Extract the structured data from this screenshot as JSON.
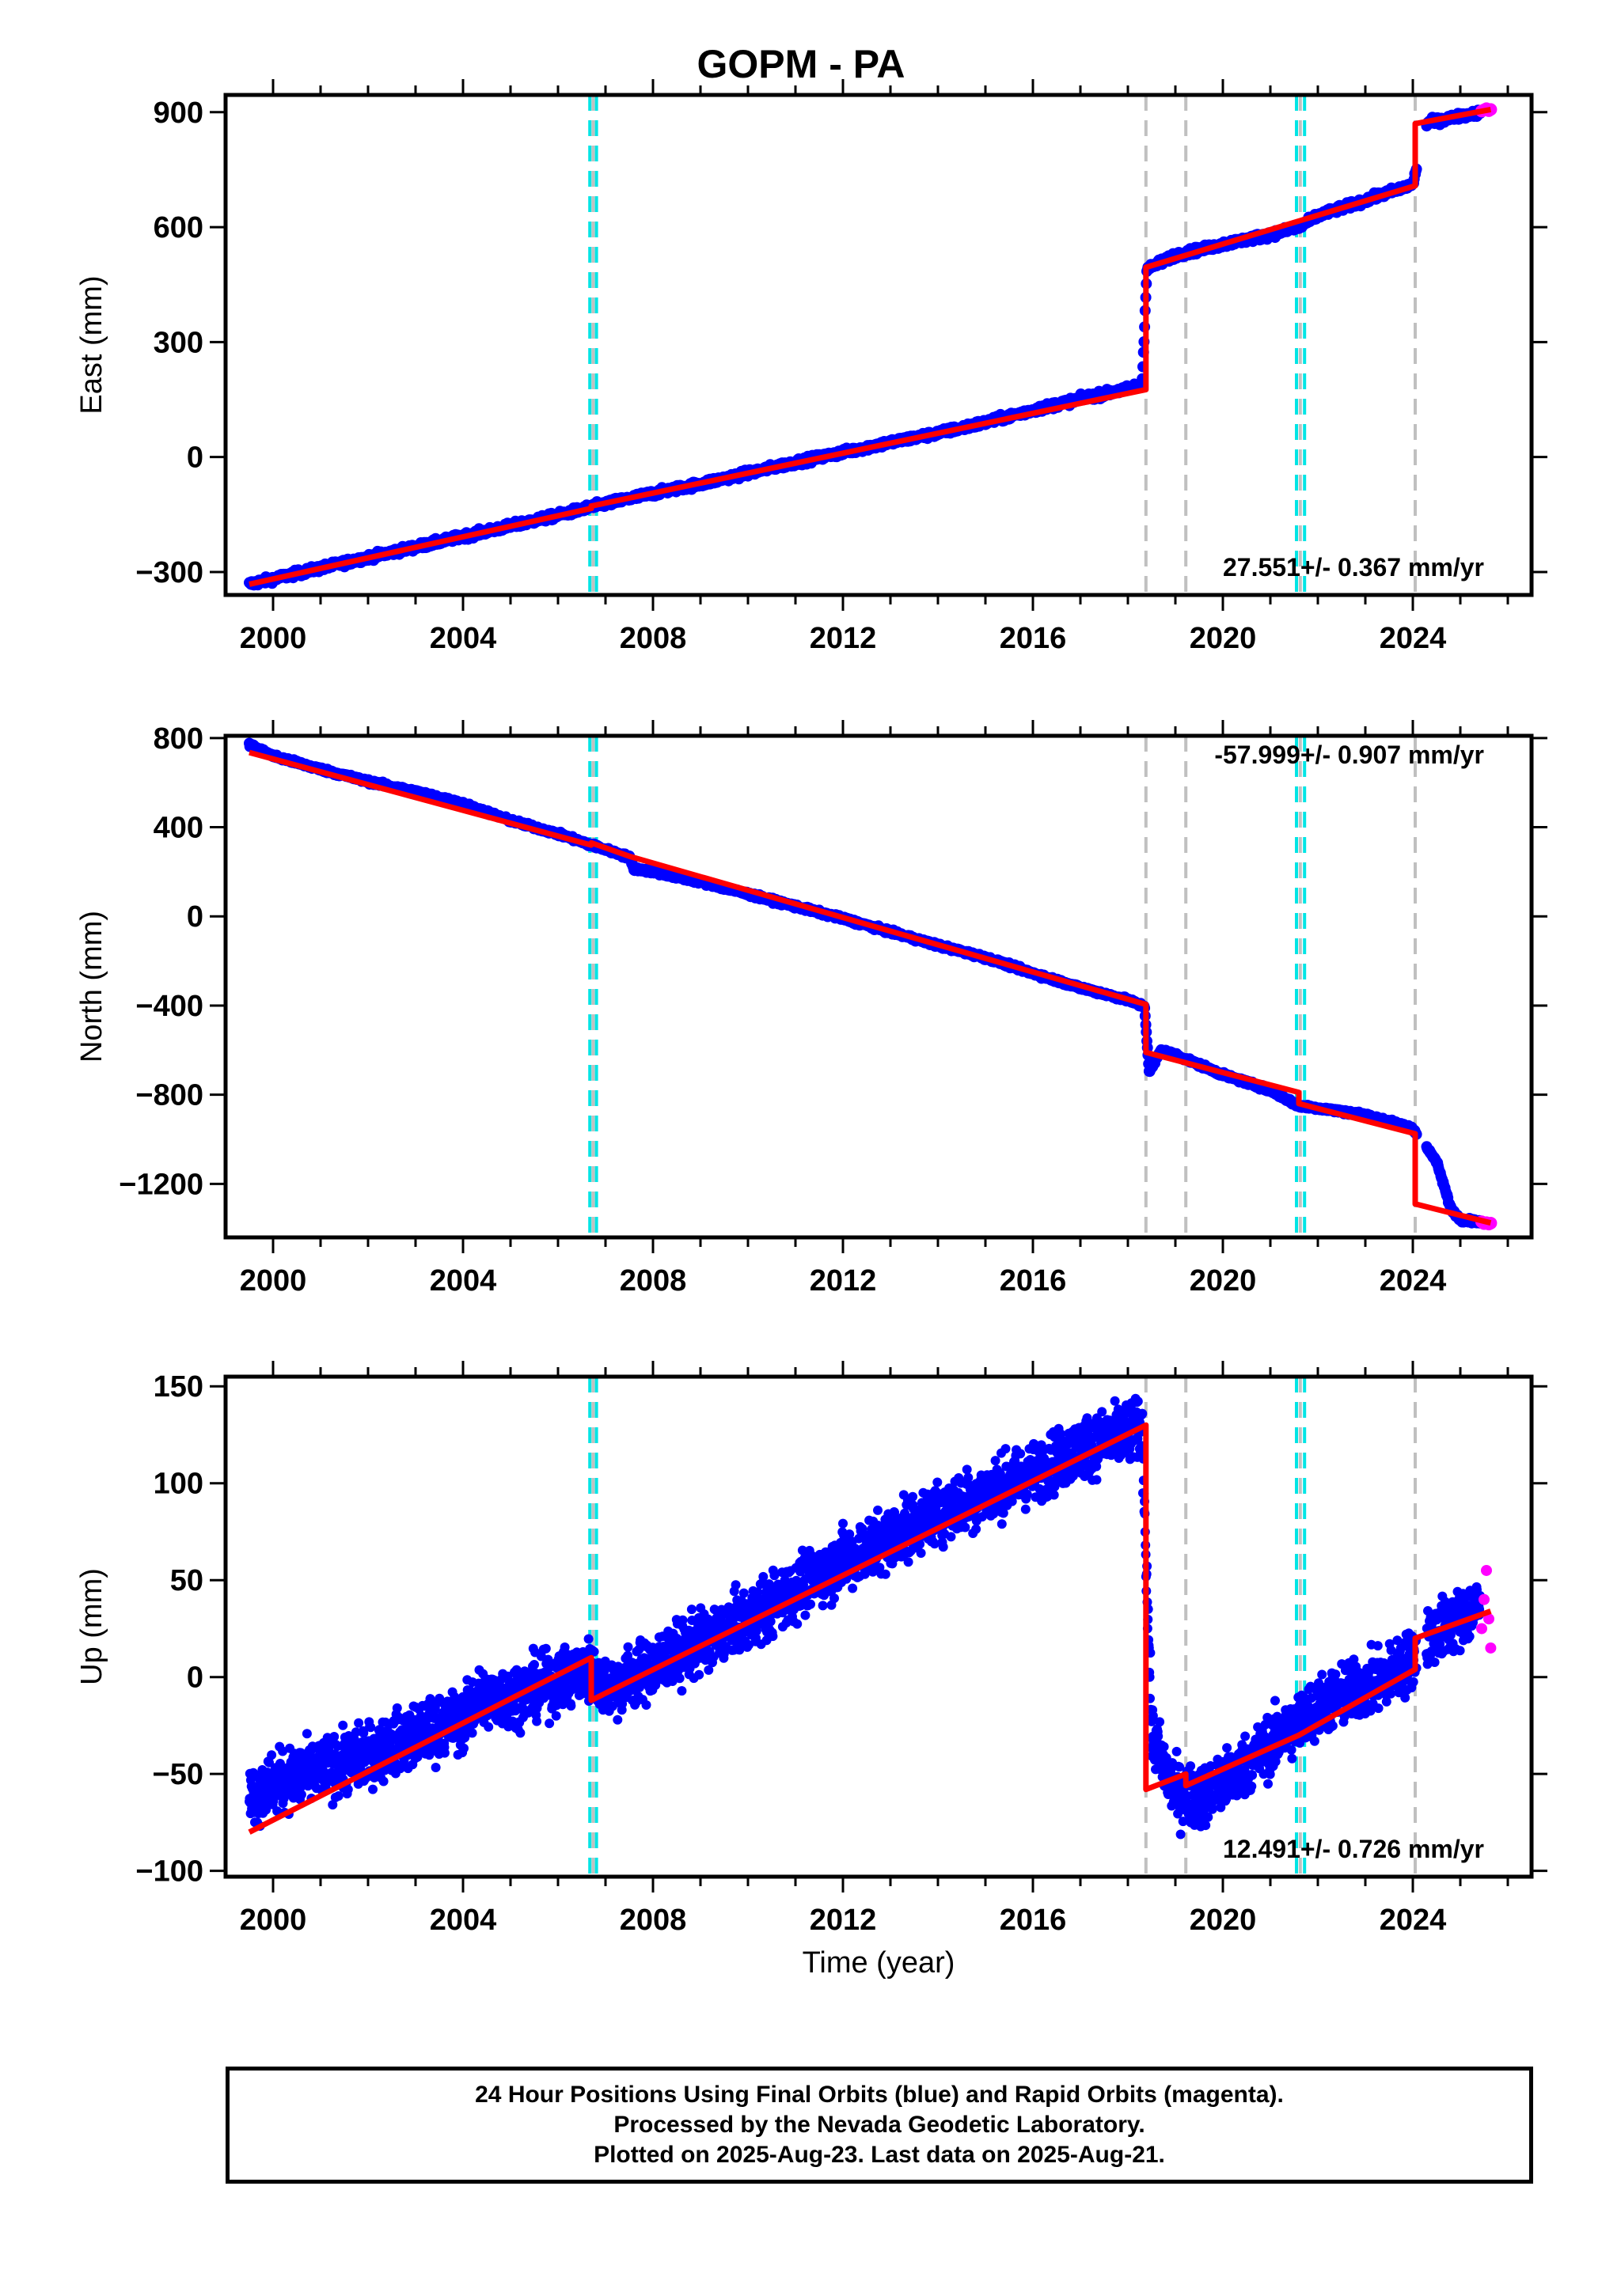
{
  "title": "GOPM - PA",
  "xlabel": "Time (year)",
  "x_ticks": [
    "2000",
    "2004",
    "2008",
    "2012",
    "2016",
    "2020",
    "2024"
  ],
  "colors": {
    "final_orbits": "#0000ff",
    "rapid_orbits": "#ff00ff",
    "model": "#ff0000",
    "antenna_change": "#00e5e5",
    "event": "#c0c0c0"
  },
  "event_lines": {
    "cyan": [
      2006.67,
      2006.81,
      2021.55,
      2021.72
    ],
    "gray": [
      2006.74,
      2018.38,
      2019.22,
      2021.63,
      2024.05
    ]
  },
  "footer": {
    "line1": "24 Hour Positions Using Final Orbits (blue) and Rapid Orbits (magenta).",
    "line2": "Processed by the Nevada Geodetic Laboratory.",
    "line3": "Plotted on 2025-Aug-23. Last data on 2025-Aug-21."
  },
  "chart_data": [
    {
      "type": "scatter",
      "component": "east",
      "ylabel": "East (mm)",
      "xlim": [
        1999,
        2026.5
      ],
      "ylim": [
        -360,
        945
      ],
      "y_ticks": [
        "-300",
        "0",
        "300",
        "600",
        "900"
      ],
      "rate_label": "27.551+/- 0.367 mm/yr",
      "series": [
        {
          "values": [
            [
              1999.5,
              -332
            ],
            [
              2000.0,
              -318
            ],
            [
              2001.0,
              -290
            ],
            [
              2002.0,
              -262
            ],
            [
              2003.0,
              -235
            ],
            [
              2004.0,
              -207
            ],
            [
              2005.0,
              -180
            ],
            [
              2006.0,
              -152
            ],
            [
              2006.7,
              -130
            ],
            [
              2007.0,
              -122
            ],
            [
              2008.0,
              -95
            ],
            [
              2009.0,
              -70
            ],
            [
              2010.0,
              -42
            ],
            [
              2011.0,
              -14
            ],
            [
              2012.0,
              12
            ],
            [
              2013.0,
              38
            ],
            [
              2014.0,
              62
            ],
            [
              2015.0,
              90
            ],
            [
              2016.0,
              122
            ],
            [
              2017.0,
              152
            ],
            [
              2018.0,
              178
            ],
            [
              2018.3,
              190
            ],
            [
              2018.4,
              490
            ],
            [
              2019.0,
              527
            ],
            [
              2020.0,
              555
            ],
            [
              2021.0,
              580
            ],
            [
              2021.6,
              600
            ],
            [
              2022.0,
              630
            ],
            [
              2023.0,
              670
            ],
            [
              2024.0,
              712
            ],
            [
              2024.3,
              872
            ],
            [
              2025.0,
              890
            ],
            [
              2025.6,
              903
            ]
          ]
        },
        {
          "values": [
            [
              2025.45,
              903
            ],
            [
              2025.5,
              906
            ],
            [
              2025.55,
              909
            ],
            [
              2025.6,
              904
            ],
            [
              2025.64,
              907
            ]
          ]
        },
        {
          "values": [
            [
              1999.5,
              -332
            ],
            [
              2006.7,
              -134
            ],
            [
              2006.7,
              -128
            ],
            [
              2018.38,
              176
            ],
            [
              2018.38,
              495
            ],
            [
              2024.05,
              708
            ],
            [
              2024.05,
              870
            ],
            [
              2025.64,
              907
            ]
          ]
        }
      ]
    },
    {
      "type": "scatter",
      "component": "north",
      "ylabel": "North (mm)",
      "xlim": [
        1999,
        2026.5
      ],
      "ylim": [
        -1440,
        810
      ],
      "y_ticks": [
        "-1200",
        "-800",
        "-400",
        "0",
        "400",
        "800"
      ],
      "rate_label": "-57.999+/- 0.907 mm/yr",
      "series": [
        {
          "values": [
            [
              1999.5,
              770
            ],
            [
              2000.0,
              720
            ],
            [
              2001.0,
              660
            ],
            [
              2002.0,
              605
            ],
            [
              2003.0,
              560
            ],
            [
              2004.0,
              505
            ],
            [
              2005.0,
              430
            ],
            [
              2006.0,
              370
            ],
            [
              2006.7,
              320
            ],
            [
              2007.0,
              300
            ],
            [
              2007.5,
              265
            ],
            [
              2007.6,
              215
            ],
            [
              2008.0,
              200
            ],
            [
              2009.0,
              155
            ],
            [
              2010.0,
              100
            ],
            [
              2011.0,
              45
            ],
            [
              2012.0,
              -10
            ],
            [
              2013.0,
              -70
            ],
            [
              2014.0,
              -130
            ],
            [
              2015.0,
              -185
            ],
            [
              2016.0,
              -255
            ],
            [
              2017.0,
              -320
            ],
            [
              2018.0,
              -375
            ],
            [
              2018.35,
              -405
            ],
            [
              2018.45,
              -700
            ],
            [
              2018.7,
              -600
            ],
            [
              2019.0,
              -620
            ],
            [
              2020.0,
              -710
            ],
            [
              2021.0,
              -780
            ],
            [
              2021.6,
              -850
            ],
            [
              2022.0,
              -860
            ],
            [
              2023.0,
              -890
            ],
            [
              2024.0,
              -950
            ],
            [
              2024.5,
              -1100
            ],
            [
              2024.8,
              -1310
            ],
            [
              2025.0,
              -1360
            ],
            [
              2025.6,
              -1375
            ]
          ]
        },
        {
          "values": [
            [
              2025.45,
              -1370
            ],
            [
              2025.5,
              -1378
            ],
            [
              2025.55,
              -1374
            ],
            [
              2025.6,
              -1380
            ],
            [
              2025.64,
              -1376
            ]
          ]
        },
        {
          "values": [
            [
              1999.5,
              735
            ],
            [
              2006.7,
              320
            ],
            [
              2006.7,
              330
            ],
            [
              2007.5,
              270
            ],
            [
              2018.38,
              -395
            ],
            [
              2018.38,
              -610
            ],
            [
              2021.6,
              -790
            ],
            [
              2021.6,
              -840
            ],
            [
              2024.05,
              -975
            ],
            [
              2024.05,
              -1290
            ],
            [
              2025.64,
              -1375
            ]
          ]
        }
      ]
    },
    {
      "type": "scatter",
      "component": "up",
      "ylabel": "Up (mm)",
      "xlim": [
        1999,
        2026.5
      ],
      "ylim": [
        -103,
        155
      ],
      "y_ticks": [
        "-100",
        "-50",
        "0",
        "50",
        "100",
        "150"
      ],
      "rate_label": "12.491+/- 0.726 mm/yr",
      "series": [
        {
          "values": [
            [
              1999.5,
              -62
            ],
            [
              2000.0,
              -55
            ],
            [
              2001.0,
              -48
            ],
            [
              2002.0,
              -40
            ],
            [
              2003.0,
              -30
            ],
            [
              2004.0,
              -22
            ],
            [
              2004.3,
              -12
            ],
            [
              2005.0,
              -10
            ],
            [
              2006.0,
              -2
            ],
            [
              2006.7,
              4
            ],
            [
              2007.0,
              -6
            ],
            [
              2008.0,
              5
            ],
            [
              2009.0,
              18
            ],
            [
              2010.0,
              30
            ],
            [
              2011.0,
              45
            ],
            [
              2012.0,
              60
            ],
            [
              2013.0,
              72
            ],
            [
              2014.0,
              85
            ],
            [
              2015.0,
              95
            ],
            [
              2016.0,
              105
            ],
            [
              2017.0,
              118
            ],
            [
              2018.3,
              128
            ],
            [
              2018.5,
              -30
            ],
            [
              2019.0,
              -60
            ],
            [
              2019.5,
              -62
            ],
            [
              2020.0,
              -55
            ],
            [
              2020.5,
              -45
            ],
            [
              2021.0,
              -35
            ],
            [
              2022.0,
              -15
            ],
            [
              2023.0,
              -5
            ],
            [
              2023.8,
              5
            ],
            [
              2024.3,
              20
            ],
            [
              2025.0,
              30
            ],
            [
              2025.6,
              40
            ]
          ]
        },
        {
          "values": [
            [
              2025.45,
              25
            ],
            [
              2025.5,
              40
            ],
            [
              2025.55,
              55
            ],
            [
              2025.6,
              30
            ],
            [
              2025.64,
              15
            ]
          ]
        },
        {
          "values": [
            [
              1999.5,
              -80
            ],
            [
              2006.7,
              10
            ],
            [
              2006.7,
              -12
            ],
            [
              2018.38,
              130
            ],
            [
              2018.38,
              -58
            ],
            [
              2019.22,
              -50
            ],
            [
              2019.22,
              -56
            ],
            [
              2021.6,
              -30
            ],
            [
              2024.05,
              4
            ],
            [
              2024.05,
              20
            ],
            [
              2025.64,
              34
            ]
          ]
        }
      ]
    }
  ]
}
